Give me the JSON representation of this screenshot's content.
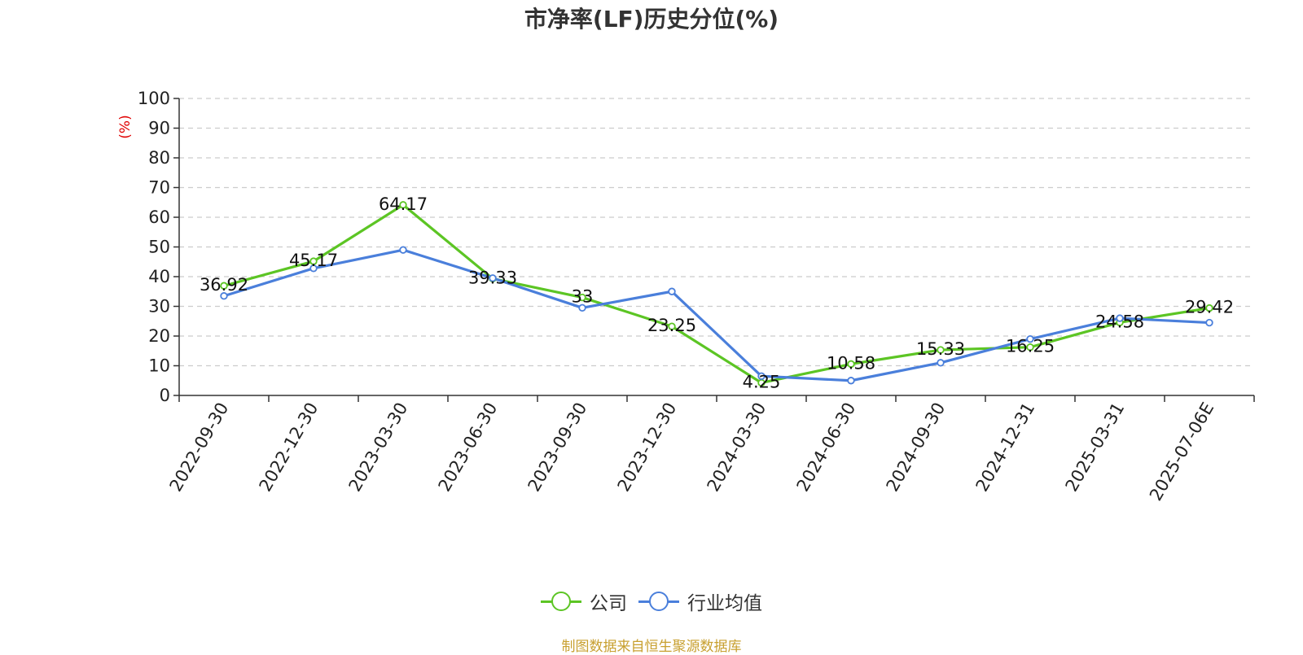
{
  "chart_data": {
    "type": "line",
    "title": "市净率(LF)历史分位(%)",
    "ylabel": "(%)",
    "xlabel": "",
    "ylim": [
      0,
      100
    ],
    "yticks": [
      0,
      10,
      20,
      30,
      40,
      50,
      60,
      70,
      80,
      90,
      100
    ],
    "grid": true,
    "legend_position": "bottom",
    "categories": [
      "2022-09-30",
      "2022-12-30",
      "2023-03-30",
      "2023-06-30",
      "2023-09-30",
      "2023-12-30",
      "2024-03-30",
      "2024-06-30",
      "2024-09-30",
      "2024-12-31",
      "2025-03-31",
      "2025-07-06E"
    ],
    "series": [
      {
        "name": "公司",
        "color": "#5cc524",
        "values": [
          36.92,
          45.17,
          64.17,
          39.33,
          33,
          23.25,
          4.25,
          10.58,
          15.33,
          16.25,
          24.58,
          29.42
        ],
        "labels": [
          "36.92",
          "45.17",
          "64.17",
          "39.33",
          "33",
          "23.25",
          "4.25",
          "10.58",
          "15.33",
          "16.25",
          "24.58",
          "29.42"
        ]
      },
      {
        "name": "行业均值",
        "color": "#4a7fdb",
        "values": [
          33.5,
          42.8,
          49,
          39.5,
          29.5,
          35,
          6.5,
          5,
          11,
          19,
          26,
          24.5
        ]
      }
    ]
  },
  "footer": {
    "source": "制图数据来自恒生聚源数据库"
  }
}
